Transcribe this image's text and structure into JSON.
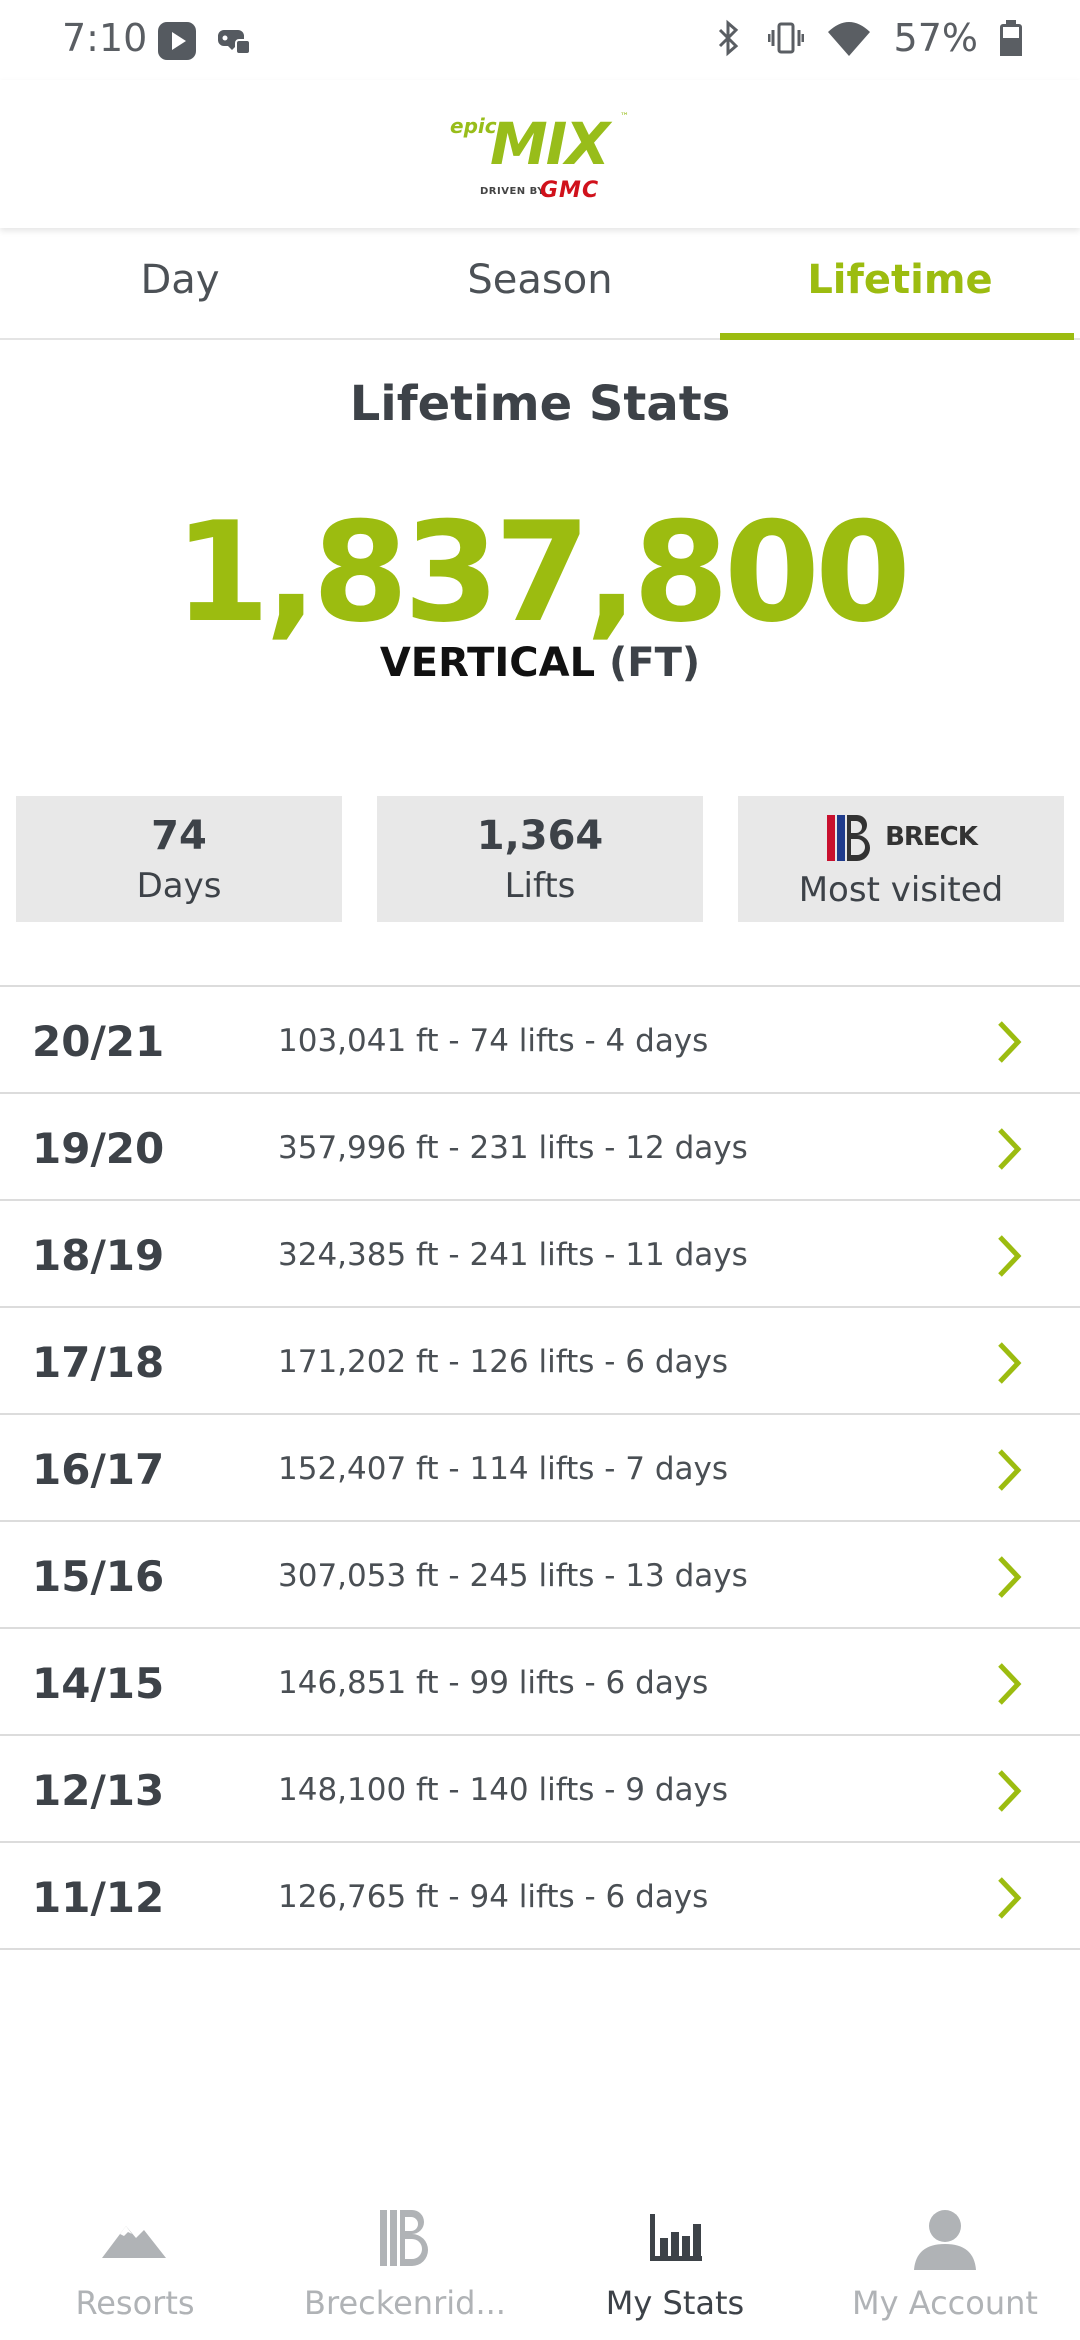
{
  "status_bar": {
    "time": "7:10",
    "battery": "57%",
    "icons": [
      "play-store-icon",
      "game-controller-icon",
      "bluetooth-icon",
      "vibrate-icon",
      "wifi-icon",
      "battery-icon"
    ]
  },
  "header": {
    "logo_epic": "epic",
    "logo_mix": "MIX",
    "logo_driven": "DRIVEN BY",
    "logo_gmc": "GMC"
  },
  "tabs": [
    {
      "label": "Day",
      "active": false
    },
    {
      "label": "Season",
      "active": false
    },
    {
      "label": "Lifetime",
      "active": true
    }
  ],
  "stats": {
    "title": "Lifetime Stats",
    "vertical_value": "1,837,800",
    "vertical_label": "VERTICAL",
    "vertical_unit": "(FT)",
    "boxes": {
      "days_value": "74",
      "days_label": "Days",
      "lifts_value": "1,364",
      "lifts_label": "Lifts",
      "resort_logo_text": "BRECK",
      "resort_label": "Most visited"
    }
  },
  "seasons": [
    {
      "season": "20/21",
      "detail": "103,041 ft - 74 lifts - 4 days"
    },
    {
      "season": "19/20",
      "detail": "357,996 ft - 231 lifts - 12 days"
    },
    {
      "season": "18/19",
      "detail": "324,385 ft - 241 lifts - 11 days"
    },
    {
      "season": "17/18",
      "detail": "171,202 ft - 126 lifts - 6 days"
    },
    {
      "season": "16/17",
      "detail": "152,407 ft - 114 lifts - 7 days"
    },
    {
      "season": "15/16",
      "detail": "307,053 ft - 245 lifts - 13 days"
    },
    {
      "season": "14/15",
      "detail": "146,851 ft - 99 lifts - 6 days"
    },
    {
      "season": "12/13",
      "detail": "148,100 ft - 140 lifts - 9 days"
    },
    {
      "season": "11/12",
      "detail": "126,765 ft - 94 lifts - 6 days"
    }
  ],
  "bottom_nav": [
    {
      "label": "Resorts",
      "icon": "mountain-icon",
      "active": false
    },
    {
      "label": "Breckenrid...",
      "icon": "breck-logo-icon",
      "active": false
    },
    {
      "label": "My Stats",
      "icon": "bar-chart-icon",
      "active": true
    },
    {
      "label": "My Account",
      "icon": "person-icon",
      "active": false
    }
  ],
  "colors": {
    "accent": "#9cbc10",
    "text": "#3d4248",
    "box_bg": "#e8e8e8",
    "gmc_red": "#d0111b"
  }
}
